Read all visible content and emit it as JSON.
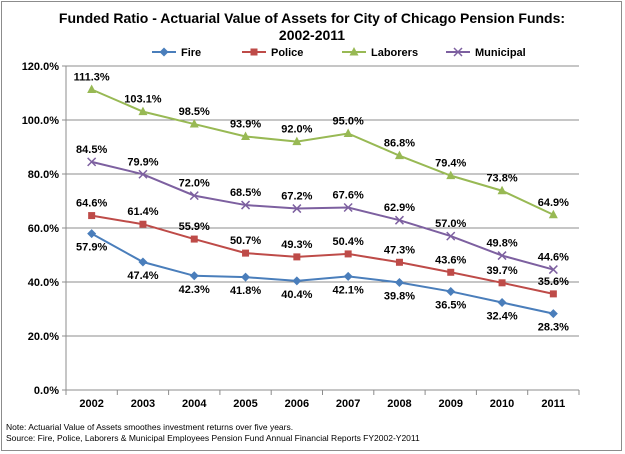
{
  "chart_data": {
    "type": "line",
    "title": [
      "Funded Ratio - Actuarial Value of Assets for City of Chicago Pension Funds:",
      "2002-2011"
    ],
    "categories": [
      "2002",
      "2003",
      "2004",
      "2005",
      "2006",
      "2007",
      "2008",
      "2009",
      "2010",
      "2011"
    ],
    "ylim": [
      0,
      120
    ],
    "yticks": [
      0,
      20,
      40,
      60,
      80,
      100,
      120
    ],
    "ytick_labels": [
      "0.0%",
      "20.0%",
      "40.0%",
      "60.0%",
      "80.0%",
      "100.0%",
      "120.0%"
    ],
    "grid": true,
    "legend_position": "top",
    "series": [
      {
        "name": "Fire",
        "color": "#4a7ebb",
        "marker": "diamond",
        "values": [
          57.9,
          47.4,
          42.3,
          41.8,
          40.4,
          42.1,
          39.8,
          36.5,
          32.4,
          28.3
        ],
        "labels": [
          "57.9%",
          "47.4%",
          "42.3%",
          "41.8%",
          "40.4%",
          "42.1%",
          "39.8%",
          "36.5%",
          "32.4%",
          "28.3%"
        ]
      },
      {
        "name": "Police",
        "color": "#be4b48",
        "marker": "square",
        "values": [
          64.6,
          61.4,
          55.9,
          50.7,
          49.3,
          50.4,
          47.3,
          43.6,
          39.7,
          35.6
        ],
        "labels": [
          "64.6%",
          "61.4%",
          "55.9%",
          "50.7%",
          "49.3%",
          "50.4%",
          "47.3%",
          "43.6%",
          "39.7%",
          "35.6%"
        ]
      },
      {
        "name": "Laborers",
        "color": "#98b954",
        "marker": "triangle",
        "values": [
          111.3,
          103.1,
          98.5,
          93.9,
          92.0,
          95.0,
          86.8,
          79.4,
          73.8,
          64.9
        ],
        "labels": [
          "111.3%",
          "103.1%",
          "98.5%",
          "93.9%",
          "92.0%",
          "95.0%",
          "86.8%",
          "79.4%",
          "73.8%",
          "64.9%"
        ]
      },
      {
        "name": "Municipal",
        "color": "#7d60a0",
        "marker": "x",
        "values": [
          84.5,
          79.9,
          72.0,
          68.5,
          67.2,
          67.6,
          62.9,
          57.0,
          49.8,
          44.6
        ],
        "labels": [
          "84.5%",
          "79.9%",
          "72.0%",
          "68.5%",
          "67.2%",
          "67.6%",
          "62.9%",
          "57.0%",
          "49.8%",
          "44.6%"
        ]
      }
    ],
    "notes": [
      "Note: Actuarial  Value of Assets smoothes investment returns over five years.",
      "Source: Fire, Police, Laborers & Municipal Employees Pension Fund Annual Financial Reports FY2002-Y2011"
    ]
  }
}
